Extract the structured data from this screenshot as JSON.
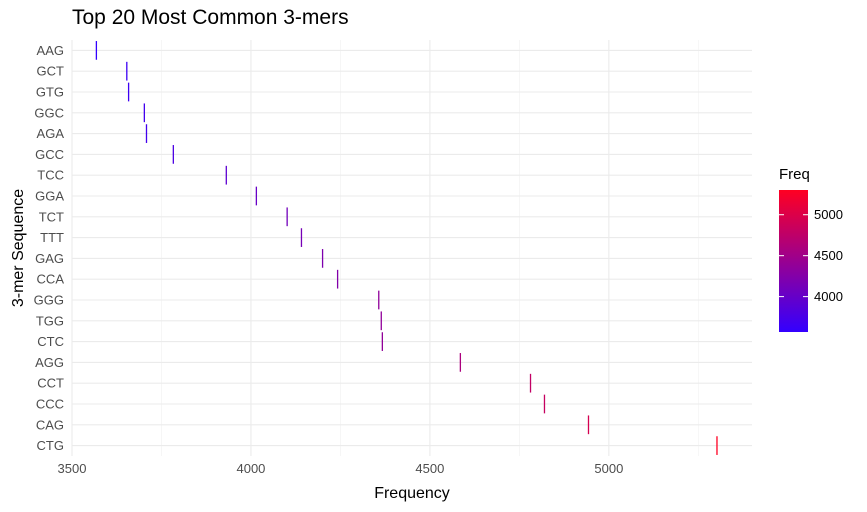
{
  "chart_data": {
    "type": "bar",
    "title": "Top 20 Most Common 3-mers",
    "xlabel": "Frequency",
    "ylabel": "3-mer Sequence",
    "xlim": [
      3500,
      5400
    ],
    "x_ticks": [
      3500,
      4000,
      4500,
      5000
    ],
    "grid": true,
    "legend_placement": "right",
    "categories": [
      "AAG",
      "GCT",
      "GTG",
      "GGC",
      "AGA",
      "GCC",
      "TCC",
      "GGA",
      "TCT",
      "TTT",
      "GAG",
      "CCA",
      "GGG",
      "TGG",
      "CTC",
      "AGG",
      "CCT",
      "CCC",
      "CAG",
      "CTG"
    ],
    "values": [
      3568,
      3653,
      3658,
      3702,
      3708,
      3783,
      3931,
      4015,
      4101,
      4141,
      4200,
      4242,
      4357,
      4364,
      4367,
      4585,
      4781,
      4820,
      4943,
      5302
    ],
    "color_scale": {
      "name": "Freq",
      "low_color": "#3300ff",
      "high_color": "#ff0022",
      "range": [
        3568,
        5302
      ],
      "ticks": [
        4000,
        4500,
        5000
      ]
    }
  }
}
